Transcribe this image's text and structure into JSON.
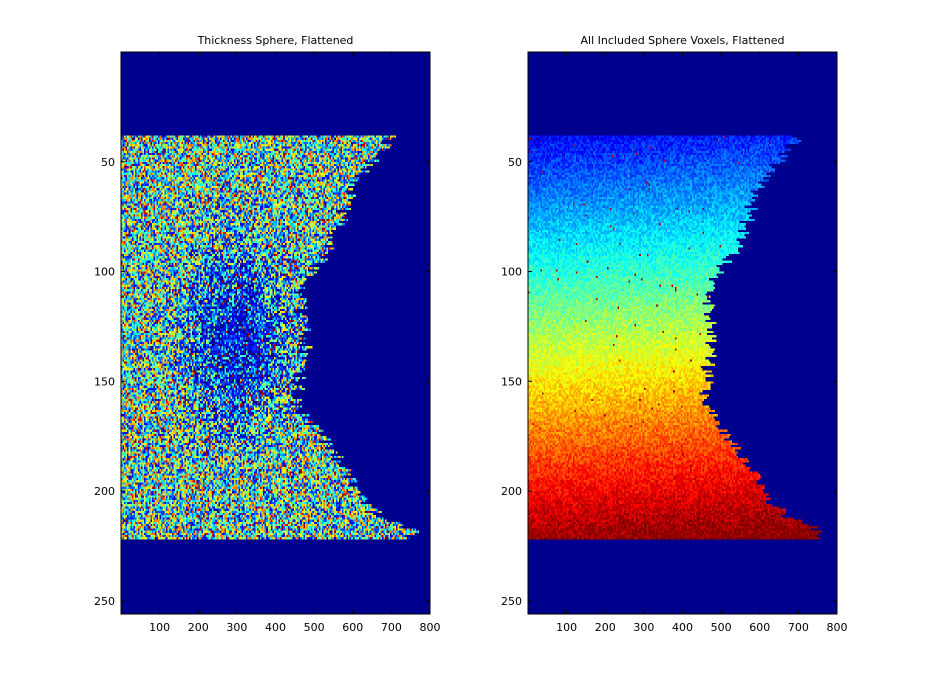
{
  "chart_data": [
    {
      "type": "heatmap",
      "title": "Thickness Sphere, Flattened",
      "xlabel": "",
      "ylabel": "",
      "xlim": [
        0,
        800
      ],
      "ylim": [
        256,
        0
      ],
      "x_ticks": [
        100,
        200,
        300,
        400,
        500,
        600,
        700,
        800
      ],
      "y_ticks": [
        50,
        100,
        150,
        200,
        250
      ],
      "colormap": "jet",
      "background_color": "#00008f",
      "data_rows": [
        38,
        221
      ],
      "pattern": "noisy",
      "right_edge_profile": [
        [
          38,
          700
        ],
        [
          50,
          650
        ],
        [
          60,
          600
        ],
        [
          75,
          570
        ],
        [
          90,
          540
        ],
        [
          100,
          490
        ],
        [
          110,
          460
        ],
        [
          120,
          470
        ],
        [
          130,
          480
        ],
        [
          140,
          470
        ],
        [
          150,
          460
        ],
        [
          160,
          450
        ],
        [
          170,
          500
        ],
        [
          180,
          540
        ],
        [
          190,
          580
        ],
        [
          200,
          610
        ],
        [
          210,
          660
        ],
        [
          218,
          760
        ],
        [
          221,
          740
        ]
      ],
      "colors": {
        "axes_bg": "#00008f",
        "frame": "#000000"
      }
    },
    {
      "type": "heatmap",
      "title": "All Included Sphere Voxels, Flattened",
      "xlabel": "",
      "ylabel": "",
      "xlim": [
        0,
        800
      ],
      "ylim": [
        256,
        0
      ],
      "x_ticks": [
        100,
        200,
        300,
        400,
        500,
        600,
        700,
        800
      ],
      "y_ticks": [
        50,
        100,
        150,
        200,
        250
      ],
      "colormap": "jet",
      "background_color": "#00008f",
      "data_rows": [
        38,
        221
      ],
      "pattern": "vertical-gradient",
      "right_edge_profile": [
        [
          38,
          700
        ],
        [
          50,
          650
        ],
        [
          60,
          600
        ],
        [
          75,
          570
        ],
        [
          90,
          540
        ],
        [
          100,
          490
        ],
        [
          110,
          460
        ],
        [
          120,
          470
        ],
        [
          130,
          480
        ],
        [
          140,
          470
        ],
        [
          150,
          460
        ],
        [
          160,
          450
        ],
        [
          170,
          500
        ],
        [
          180,
          540
        ],
        [
          190,
          580
        ],
        [
          200,
          610
        ],
        [
          210,
          660
        ],
        [
          218,
          760
        ],
        [
          221,
          740
        ]
      ],
      "colors": {
        "axes_bg": "#00008f",
        "frame": "#000000"
      }
    }
  ]
}
